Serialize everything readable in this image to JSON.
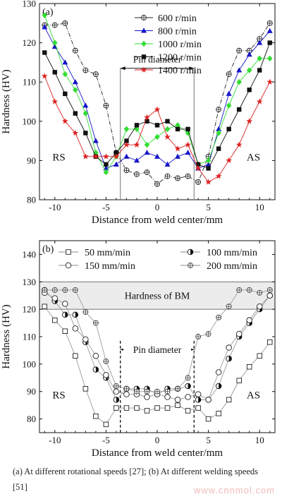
{
  "chart_data": [
    {
      "type": "line",
      "panel_label": "(a)",
      "xlabel": "Distance from weld center/mm",
      "ylabel": "Hardness (HV)",
      "xlim": [
        -11.5,
        11.5
      ],
      "ylim": [
        80,
        130
      ],
      "xticks": [
        -10,
        -5,
        0,
        5,
        10
      ],
      "yticks": [
        80,
        90,
        100,
        110,
        120,
        130
      ],
      "legend_position": "top-right",
      "annotations": {
        "left": "RS",
        "right": "AS",
        "bracket": "Pin diameter",
        "bracket_range": [
          -3.6,
          3.6
        ]
      },
      "series": [
        {
          "name": "600 r/min",
          "color": "#222222",
          "marker": "circle-plus",
          "x": [
            -11,
            -10,
            -9,
            -8,
            -7,
            -6,
            -5,
            -4,
            -3,
            -2,
            -1,
            0,
            1,
            2,
            3,
            4,
            5,
            6,
            7,
            8,
            9,
            10,
            11
          ],
          "y": [
            124.5,
            124.5,
            125,
            118,
            113,
            112,
            104,
            92,
            87.5,
            86.5,
            87,
            84,
            86,
            85.5,
            86,
            84.5,
            91,
            103,
            112,
            118,
            118,
            121,
            125
          ]
        },
        {
          "name": "800 r/min",
          "color": "#1515c8",
          "marker": "triangle",
          "x": [
            -11,
            -10,
            -9,
            -8,
            -7,
            -6,
            -5,
            -4,
            -3,
            -2,
            -1,
            0,
            1,
            2,
            3,
            4,
            5,
            6,
            7,
            8,
            9,
            10,
            11
          ],
          "y": [
            124,
            119,
            115,
            110,
            104,
            95,
            88,
            89,
            91,
            90,
            92,
            91,
            89,
            91,
            92,
            88,
            89,
            98,
            107,
            113,
            117,
            120,
            123
          ]
        },
        {
          "name": "1000 r/min",
          "color": "#33dd33",
          "marker": "diamond",
          "x": [
            -11,
            -10,
            -9,
            -8,
            -7,
            -6,
            -5,
            -4,
            -3,
            -2,
            -1,
            0,
            1,
            2,
            3,
            4,
            5,
            6,
            7,
            8,
            9,
            10,
            11
          ],
          "y": [
            127,
            120,
            112,
            108,
            102,
            92,
            87,
            91,
            98,
            98,
            94,
            96,
            98,
            99,
            97,
            89,
            90,
            97,
            104,
            110,
            113,
            116,
            116
          ]
        },
        {
          "name": "1200 r/min",
          "color": "#111111",
          "marker": "square",
          "x": [
            -11,
            -10,
            -9,
            -8,
            -7,
            -6,
            -5,
            -4,
            -3,
            -2,
            -1,
            0,
            1,
            2,
            3,
            4,
            5,
            6,
            7,
            8,
            9,
            10,
            11
          ],
          "y": [
            117.5,
            112.5,
            107,
            102,
            97,
            91,
            89,
            92,
            95,
            99,
            100,
            99,
            100,
            98,
            98,
            89,
            88,
            93,
            98,
            103,
            108,
            113,
            120
          ]
        },
        {
          "name": "1400 r/min",
          "color": "#dd2222",
          "marker": "star",
          "x": [
            -11,
            -10,
            -9,
            -8,
            -7,
            -6,
            -5,
            -4,
            -3,
            -2,
            -1,
            0,
            1,
            2,
            3,
            4,
            5,
            6,
            7,
            8,
            9,
            10,
            11
          ],
          "y": [
            111.5,
            105,
            100,
            97,
            91,
            91,
            91,
            91,
            94,
            94,
            101,
            103,
            96,
            93,
            94,
            88,
            84.5,
            86,
            90,
            94,
            100,
            105,
            110
          ]
        }
      ]
    },
    {
      "type": "line",
      "panel_label": "(b)",
      "xlabel": "Distance from weld center/mm",
      "ylabel": "Hardness (HV)",
      "xlim": [
        -11.5,
        11.5
      ],
      "ylim": [
        75,
        145
      ],
      "xticks": [
        -10,
        -5,
        0,
        5,
        10
      ],
      "yticks": [
        80,
        90,
        100,
        110,
        120,
        130,
        140
      ],
      "legend_position": "top",
      "annotations": {
        "left": "RS",
        "right": "AS",
        "band": "Hardness of BM",
        "band_range": [
          120,
          130
        ],
        "bracket": "Pin diameter",
        "bracket_range": [
          -3.6,
          3.6
        ]
      },
      "series": [
        {
          "name": "50 mm/min",
          "color": "#666666",
          "marker": "open-square",
          "x": [
            -11,
            -10,
            -9,
            -8,
            -7,
            -6,
            -5,
            -4,
            -3,
            -2,
            -1,
            0,
            1,
            2,
            3,
            4,
            5,
            6,
            7,
            8,
            9,
            10,
            11
          ],
          "y": [
            121,
            116,
            112,
            103,
            91,
            81,
            78,
            84,
            84,
            84,
            83,
            84,
            84,
            85,
            83,
            84,
            80,
            82,
            87,
            94,
            99,
            103,
            108
          ]
        },
        {
          "name": "100 mm/min",
          "color": "#111111",
          "marker": "half-filled-circle",
          "x": [
            -11,
            -10,
            -9,
            -8,
            -7,
            -6,
            -5,
            -4,
            -3,
            -2,
            -1,
            0,
            1,
            2,
            3,
            4,
            5,
            6,
            7,
            8,
            9,
            10,
            11
          ],
          "y": [
            127,
            123,
            118,
            118,
            108,
            98,
            95,
            87,
            91,
            91,
            91,
            89,
            91,
            91,
            92,
            87,
            87,
            92,
            102,
            110,
            115,
            120,
            125
          ]
        },
        {
          "name": "150 mm/min",
          "color": "#333333",
          "marker": "open-circle",
          "x": [
            -11,
            -10,
            -9,
            -8,
            -7,
            -6,
            -5,
            -4,
            -3,
            -2,
            -1,
            0,
            1,
            2,
            3,
            4,
            5,
            6,
            7,
            8,
            9,
            10,
            11
          ],
          "y": [
            126,
            124,
            122,
            113,
            109,
            103,
            96,
            90,
            89,
            89,
            88,
            89,
            88,
            87,
            88,
            89,
            87,
            97,
            106,
            111,
            116,
            121,
            125
          ]
        },
        {
          "name": "200 mm/min",
          "color": "#444444",
          "marker": "circle-plus",
          "x": [
            -11,
            -10,
            -9,
            -8,
            -7,
            -6,
            -5,
            -4,
            -3,
            -2,
            -1,
            0,
            1,
            2,
            3,
            4,
            5,
            6,
            7,
            8,
            9,
            10,
            11
          ],
          "y": [
            127,
            127,
            127,
            127,
            119,
            115,
            101,
            92,
            91,
            90,
            90,
            90,
            90,
            91,
            95,
            110,
            111,
            117,
            121,
            127,
            127,
            126,
            127
          ]
        }
      ]
    }
  ],
  "caption": "(a) At different rotational speeds [27]; (b) At different welding speeds [51]",
  "watermark": "www.cnnmol.com"
}
